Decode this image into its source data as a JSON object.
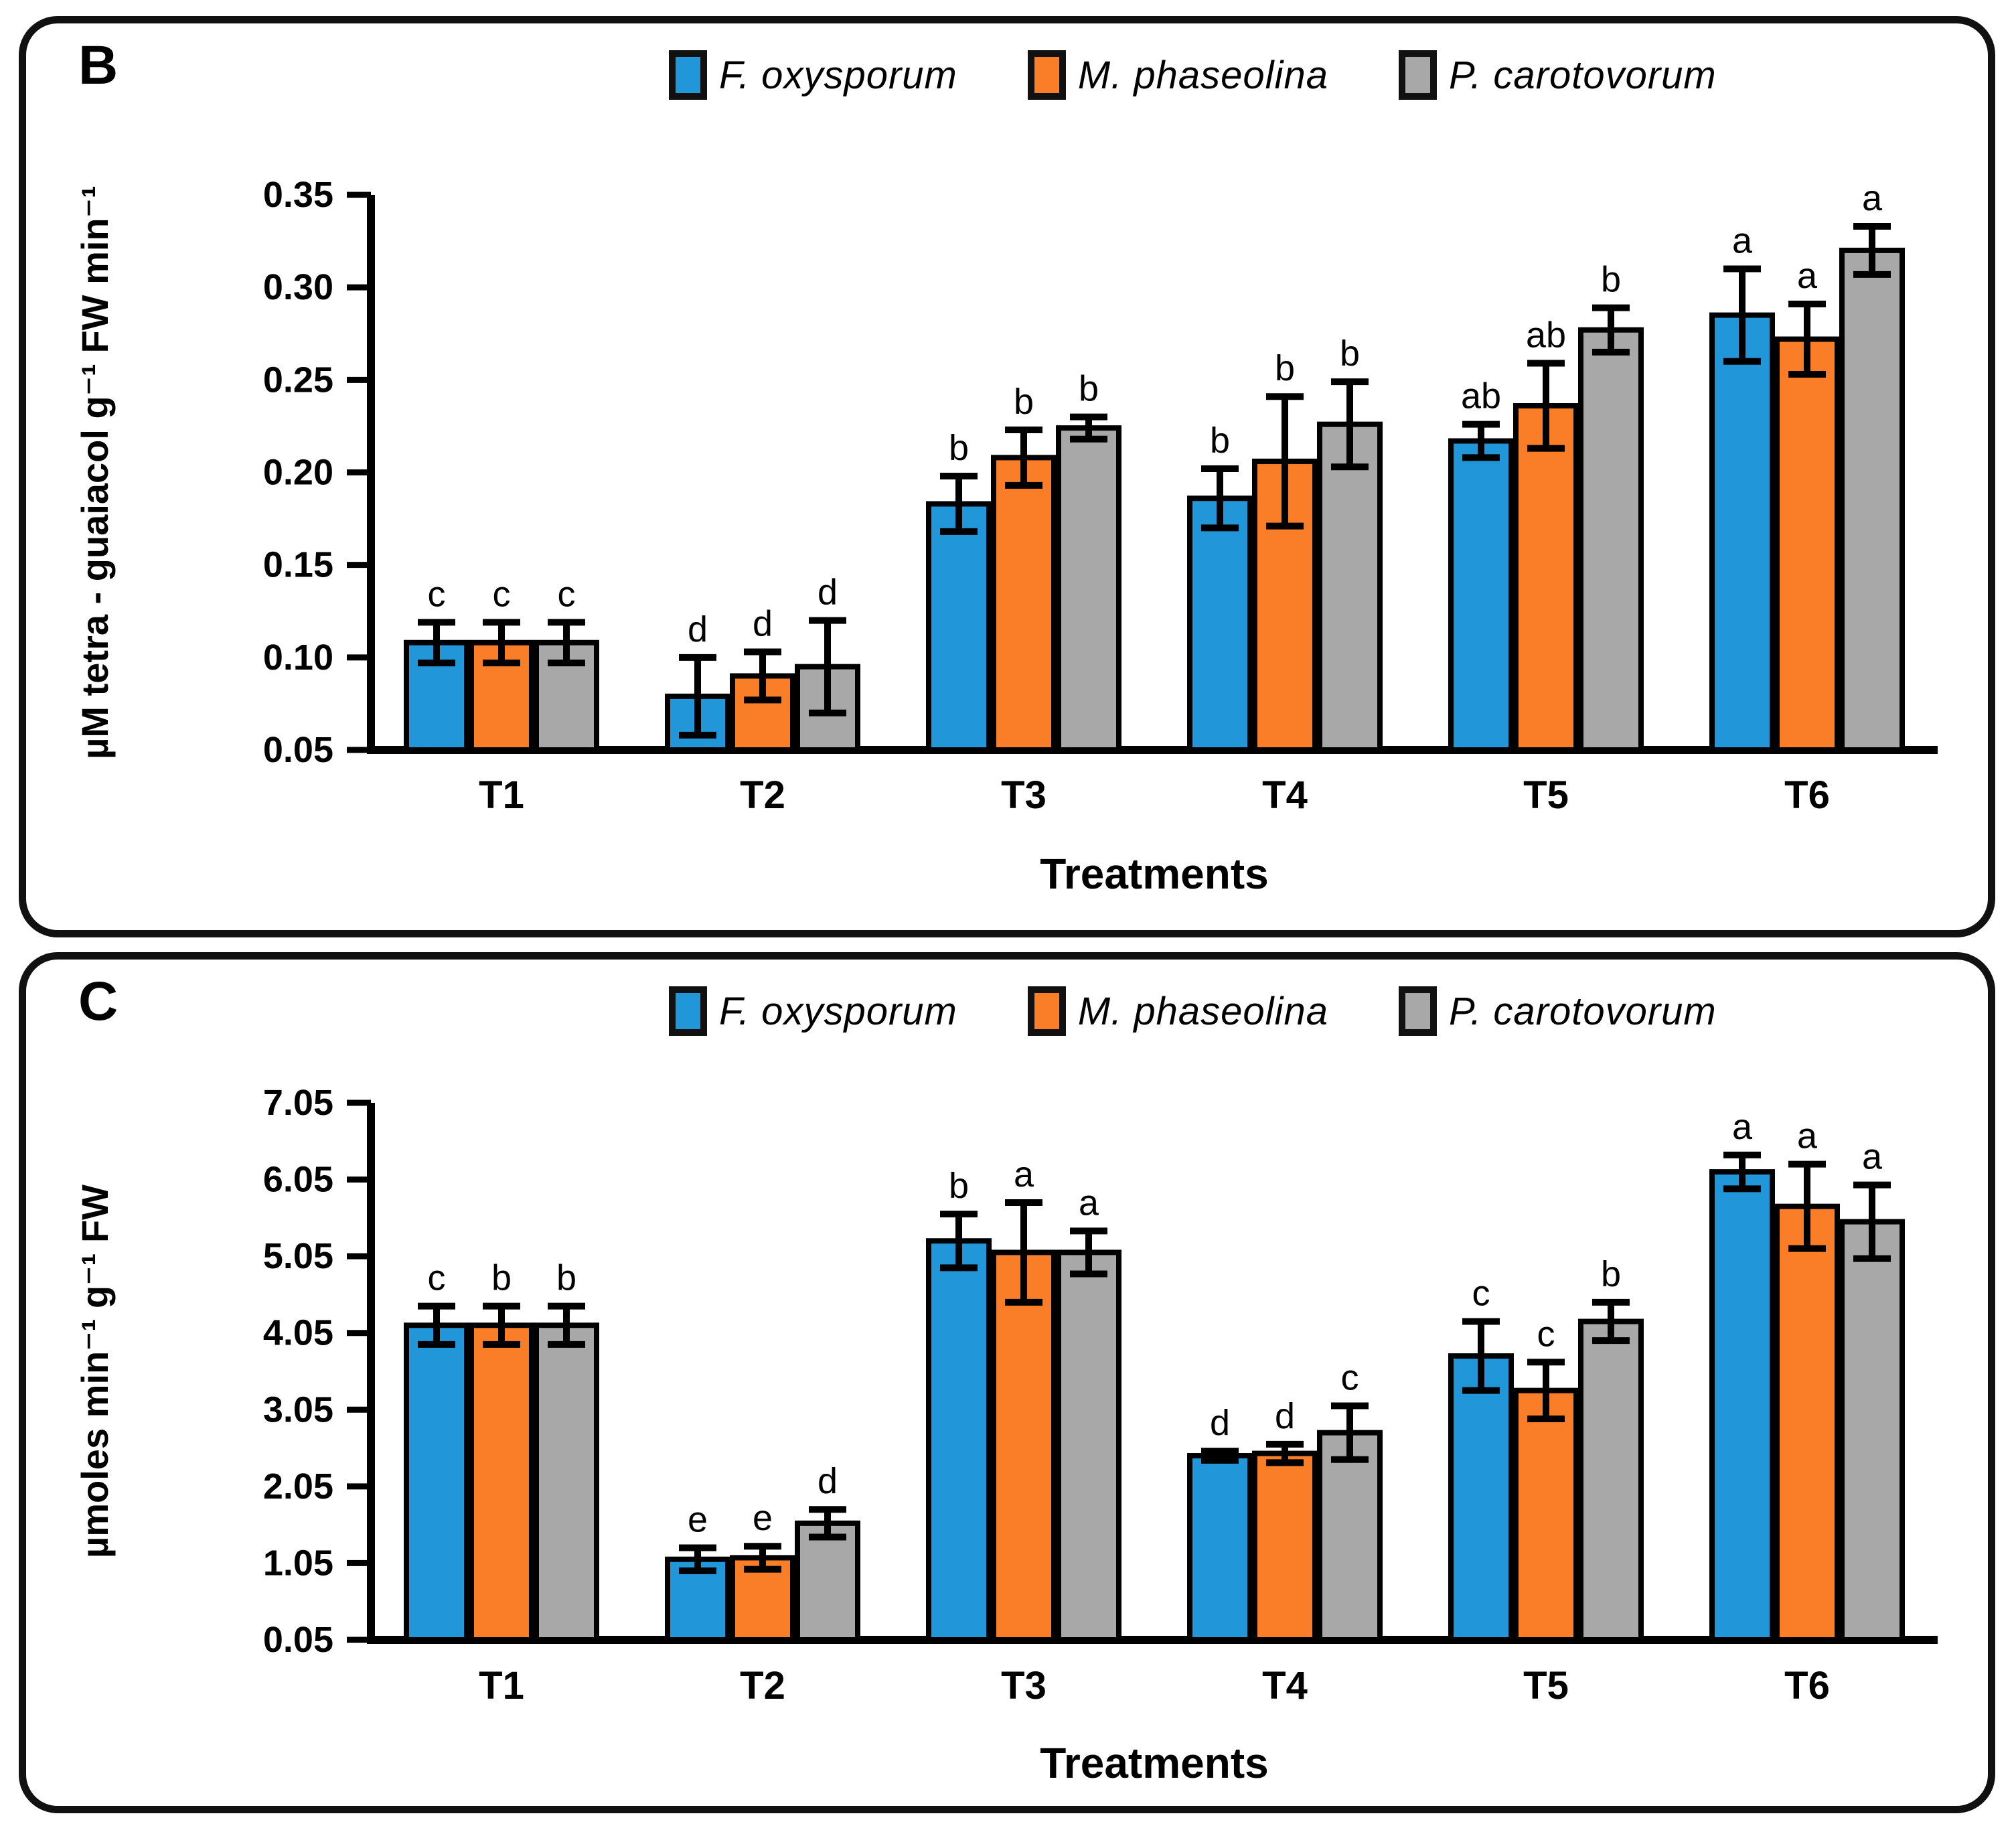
{
  "panels": [
    {
      "label": "B"
    },
    {
      "label": "C"
    }
  ],
  "chart_data": [
    {
      "type": "bar",
      "panel": "B",
      "title": "",
      "xlabel": "Treatments",
      "ylabel": "µM tetra - guaiacol g⁻¹ FW min⁻¹",
      "categories": [
        "T1",
        "T2",
        "T3",
        "T4",
        "T5",
        "T6"
      ],
      "ylim": [
        0.05,
        0.35
      ],
      "yticks": [
        "0.05",
        "0.10",
        "0.15",
        "0.20",
        "0.25",
        "0.30",
        "0.35"
      ],
      "grid": false,
      "legend_position": "top",
      "series": [
        {
          "name": "F. oxysporum",
          "color": "#2196d8",
          "values": [
            0.108,
            0.079,
            0.183,
            0.186,
            0.217,
            0.285
          ],
          "errors": [
            0.011,
            0.021,
            0.015,
            0.016,
            0.009,
            0.025
          ],
          "letters": [
            "c",
            "d",
            "b",
            "b",
            "ab",
            "a"
          ]
        },
        {
          "name": "M. phaseolina",
          "color": "#f97e27",
          "values": [
            0.108,
            0.09,
            0.208,
            0.206,
            0.236,
            0.272
          ],
          "errors": [
            0.011,
            0.013,
            0.015,
            0.035,
            0.023,
            0.019
          ],
          "letters": [
            "c",
            "d",
            "b",
            "b",
            "ab",
            "a"
          ]
        },
        {
          "name": "P. carotovorum",
          "color": "#a8a8a8",
          "values": [
            0.108,
            0.095,
            0.224,
            0.226,
            0.277,
            0.32
          ],
          "errors": [
            0.011,
            0.025,
            0.006,
            0.023,
            0.012,
            0.013
          ],
          "letters": [
            "c",
            "d",
            "b",
            "b",
            "b",
            "a"
          ]
        }
      ]
    },
    {
      "type": "bar",
      "panel": "C",
      "title": "",
      "xlabel": "Treatments",
      "ylabel": "µmoles min⁻¹ g⁻¹ FW",
      "categories": [
        "T1",
        "T2",
        "T3",
        "T4",
        "T5",
        "T6"
      ],
      "ylim": [
        0.05,
        7.05
      ],
      "yticks": [
        "0.05",
        "1.05",
        "2.05",
        "3.05",
        "4.05",
        "5.05",
        "6.05",
        "7.05"
      ],
      "grid": false,
      "legend_position": "top",
      "series": [
        {
          "name": "F. oxysporum",
          "color": "#2196d8",
          "values": [
            4.15,
            1.1,
            5.25,
            2.45,
            3.75,
            6.15
          ],
          "errors": [
            0.25,
            0.15,
            0.35,
            0.06,
            0.45,
            0.22
          ],
          "letters": [
            "c",
            "e",
            "b",
            "d",
            "c",
            "a"
          ]
        },
        {
          "name": "M. phaseolina",
          "color": "#f97e27",
          "values": [
            4.15,
            1.12,
            5.1,
            2.48,
            3.3,
            5.7
          ],
          "errors": [
            0.25,
            0.15,
            0.65,
            0.12,
            0.37,
            0.55
          ],
          "letters": [
            "b",
            "e",
            "a",
            "d",
            "c",
            "a"
          ]
        },
        {
          "name": "P. carotovorum",
          "color": "#a8a8a8",
          "values": [
            4.15,
            1.57,
            5.1,
            2.75,
            4.2,
            5.5
          ],
          "errors": [
            0.25,
            0.18,
            0.28,
            0.35,
            0.25,
            0.48
          ],
          "letters": [
            "b",
            "d",
            "a",
            "c",
            "b",
            "a"
          ]
        }
      ]
    }
  ]
}
